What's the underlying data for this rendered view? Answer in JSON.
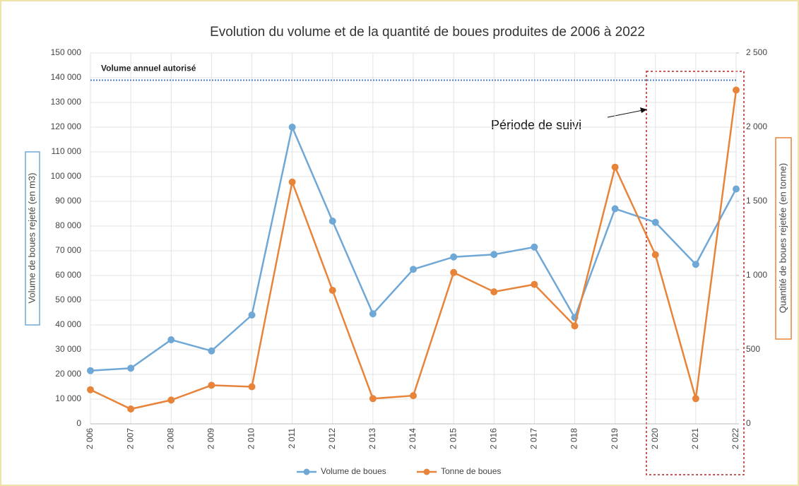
{
  "chart_data": {
    "type": "line",
    "title": "Evolution du volume et de la quantité de boues produites de 2006 à 2022",
    "categories": [
      "2 006",
      "2 007",
      "2 008",
      "2 009",
      "2 010",
      "2 011",
      "2 012",
      "2 013",
      "2 014",
      "2 015",
      "2 016",
      "2 017",
      "2 018",
      "2 019",
      "2 020",
      "2 021",
      "2 022"
    ],
    "series": [
      {
        "name": "Volume de boues",
        "color": "#6fa8d6",
        "axis": "y",
        "values": [
          21500,
          22500,
          34000,
          29500,
          44000,
          120000,
          82000,
          44500,
          62500,
          67500,
          68500,
          71500,
          43000,
          87000,
          81500,
          64500,
          95000
        ]
      },
      {
        "name": "Tonne de boues",
        "color": "#e8833a",
        "axis": "y2",
        "values": [
          230,
          100,
          160,
          260,
          250,
          1630,
          900,
          170,
          190,
          1020,
          890,
          940,
          660,
          1730,
          1140,
          170,
          2250
        ]
      }
    ],
    "ylabel": "Volume de boues rejeté (en m3)",
    "y2label": "Quantité de boues rejetée (en tonne)",
    "ylim": [
      0,
      150000
    ],
    "yticks": [
      0,
      {
        "value": 10000,
        "label": "10 000"
      },
      {
        "value": 20000,
        "label": "20 000"
      },
      {
        "value": 30000,
        "label": "30 000"
      },
      {
        "value": 40000,
        "label": "40 000"
      },
      {
        "value": 50000,
        "label": "50 000"
      },
      {
        "value": 60000,
        "label": "60 000"
      },
      {
        "value": 70000,
        "label": "70 000"
      },
      {
        "value": 80000,
        "label": "80 000"
      },
      {
        "value": 90000,
        "label": "90 000"
      },
      {
        "value": 100000,
        "label": "100 000"
      },
      {
        "value": 110000,
        "label": "110 000"
      },
      {
        "value": 120000,
        "label": "120 000"
      },
      {
        "value": 130000,
        "label": "130 000"
      },
      {
        "value": 140000,
        "label": "140 000"
      },
      {
        "value": 150000,
        "label": "150 000"
      }
    ],
    "y2lim": [
      0,
      2500
    ],
    "y2ticks": [
      0,
      500,
      {
        "value": 1000,
        "label": "1 000"
      },
      {
        "value": 1500,
        "label": "1 500"
      },
      {
        "value": 2000,
        "label": "2 000"
      },
      {
        "value": 2500,
        "label": "2 500"
      }
    ],
    "grid": true,
    "legend": "bottom",
    "reference_line": {
      "label": "Volume annuel autorisé",
      "value": 139000
    },
    "annotation": "Période de suivi"
  }
}
